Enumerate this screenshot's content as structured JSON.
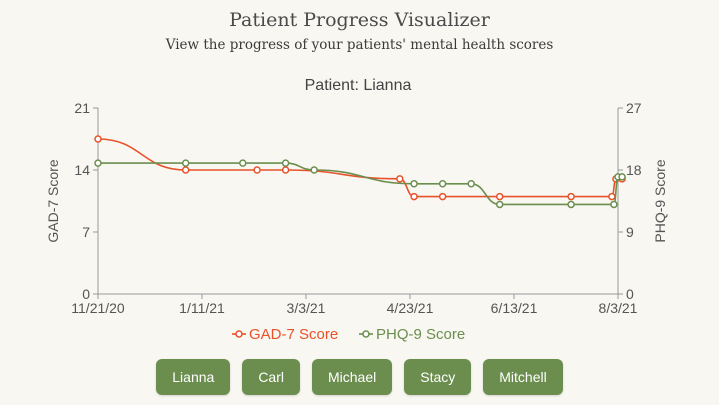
{
  "header": {
    "title": "Patient Progress Visualizer",
    "subtitle": "View the progress of your patients' mental health scores"
  },
  "buttons": [
    "Lianna",
    "Carl",
    "Michael",
    "Stacy",
    "Mitchell"
  ],
  "chart_data": {
    "type": "line",
    "title": "Patient: Lianna",
    "x_ticks": [
      "11/21/20",
      "1/11/21",
      "3/3/21",
      "4/23/21",
      "6/13/21",
      "8/3/21"
    ],
    "y_left": {
      "label": "GAD-7 Score",
      "range": [
        0,
        21
      ],
      "ticks": [
        0,
        7,
        14,
        21
      ]
    },
    "y_right": {
      "label": "PHQ-9 Score",
      "range": [
        0,
        27
      ],
      "ticks": [
        0,
        9,
        18,
        27
      ]
    },
    "grid": false,
    "legend_position": "bottom",
    "series": [
      {
        "name": "GAD-7 Score",
        "axis": "left",
        "color": "#e8522a",
        "x": [
          "2020-11-21",
          "2021-01-03",
          "2021-02-07",
          "2021-02-21",
          "2021-04-18",
          "2021-04-25",
          "2021-05-09",
          "2021-06-06",
          "2021-07-11",
          "2021-07-31",
          "2021-08-02",
          "2021-08-05"
        ],
        "y": [
          17.5,
          14,
          14,
          14,
          13,
          11,
          11,
          11,
          11,
          11,
          13,
          13
        ]
      },
      {
        "name": "PHQ-9 Score",
        "axis": "right",
        "color": "#6b8e4e",
        "x": [
          "2020-11-21",
          "2021-01-03",
          "2021-01-31",
          "2021-02-21",
          "2021-03-07",
          "2021-04-25",
          "2021-05-09",
          "2021-05-23",
          "2021-06-06",
          "2021-07-11",
          "2021-08-01",
          "2021-08-03",
          "2021-08-05"
        ],
        "y": [
          19,
          19,
          19,
          19,
          18,
          16,
          16,
          16,
          13,
          13,
          13,
          17,
          17
        ]
      }
    ]
  }
}
